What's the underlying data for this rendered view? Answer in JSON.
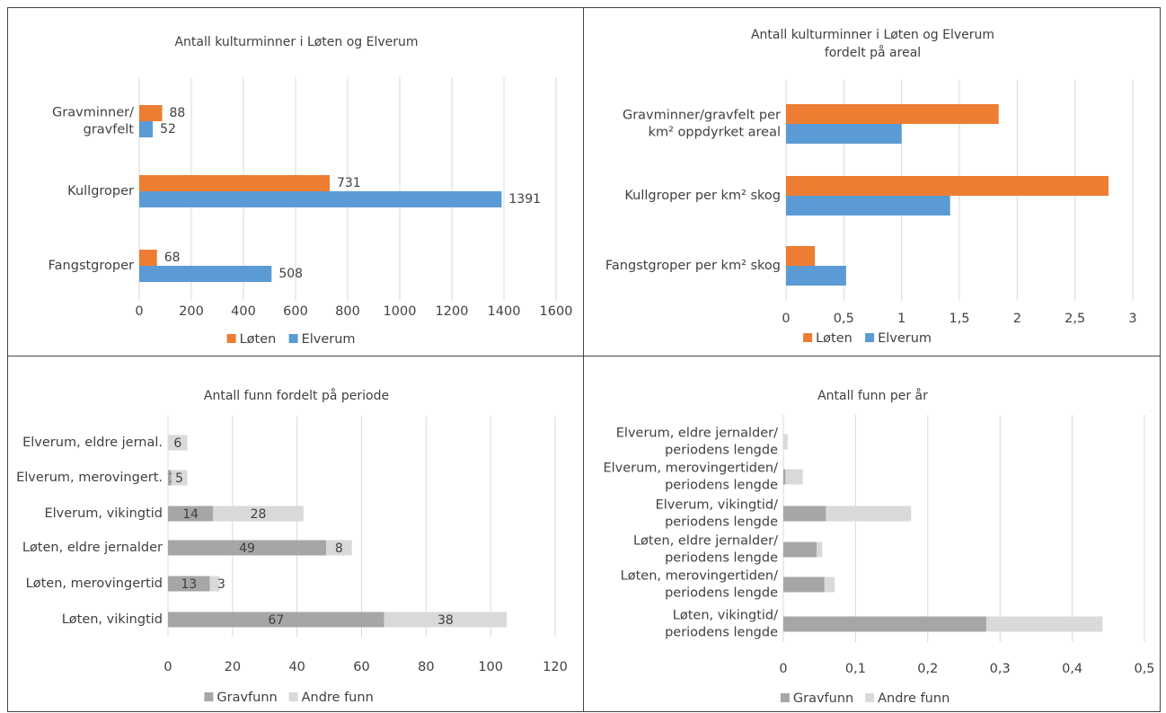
{
  "colors": {
    "loten": "#ED7D31",
    "elverum": "#5B9BD5",
    "gravfunn": "#A6A6A6",
    "andre_funn": "#D9D9D9",
    "grid": "#D9D9D9",
    "text": "#404040"
  },
  "chart_data": [
    {
      "type": "bar",
      "orientation": "horizontal",
      "title": "Antall kulturminner i Løten og Elverum",
      "categories": [
        [
          "Gravminner/",
          "gravfelt"
        ],
        [
          "Kullgroper"
        ],
        [
          "Fangstgroper"
        ]
      ],
      "series": [
        {
          "name": "Løten",
          "values": [
            88,
            731,
            68
          ]
        },
        {
          "name": "Elverum",
          "values": [
            52,
            1391,
            508
          ]
        }
      ],
      "data_labels": true,
      "xlim": [
        0,
        1600
      ],
      "ticks": [
        "0",
        "200",
        "400",
        "600",
        "800",
        "1000",
        "1200",
        "1400",
        "1600"
      ],
      "grid": true,
      "legend": "bottom"
    },
    {
      "type": "bar",
      "orientation": "horizontal",
      "title": [
        "Antall kulturminner i Løten og Elverum",
        "fordelt på areal"
      ],
      "categories": [
        [
          "Gravminner/gravfelt per",
          "km² oppdyrket areal"
        ],
        [
          "Kullgroper per km² skog"
        ],
        [
          "Fangstgroper per km² skog"
        ]
      ],
      "series": [
        {
          "name": "Løten",
          "values": [
            1.84,
            2.79,
            0.25
          ]
        },
        {
          "name": "Elverum",
          "values": [
            1.0,
            1.42,
            0.52
          ]
        }
      ],
      "data_labels": false,
      "xlim": [
        0,
        3
      ],
      "ticks": [
        "0",
        "0,5",
        "1",
        "1,5",
        "2",
        "2,5",
        "3"
      ],
      "grid": true,
      "legend": "bottom"
    },
    {
      "type": "bar",
      "orientation": "horizontal",
      "stacked": true,
      "title": "Antall funn fordelt på periode",
      "categories": [
        [
          "Elverum, eldre jernal."
        ],
        [
          "Elverum, merovingert."
        ],
        [
          "Elverum, vikingtid"
        ],
        [
          "Løten, eldre jernalder"
        ],
        [
          "Løten, merovingertid"
        ],
        [
          "Løten, vikingtid"
        ]
      ],
      "series": [
        {
          "name": "Gravfunn",
          "values": [
            0,
            1,
            14,
            49,
            13,
            67
          ]
        },
        {
          "name": "Andre funn",
          "values": [
            6,
            5,
            28,
            8,
            3,
            38
          ]
        }
      ],
      "data_labels": true,
      "xlim": [
        0,
        120
      ],
      "ticks": [
        "0",
        "20",
        "40",
        "60",
        "80",
        "100",
        "120"
      ],
      "grid": true,
      "legend": "bottom"
    },
    {
      "type": "bar",
      "orientation": "horizontal",
      "stacked": true,
      "title": "Antall funn per år",
      "categories": [
        [
          "Elverum, eldre jernalder/",
          "periodens lengde"
        ],
        [
          "Elverum, merovingertiden/",
          "periodens lengde"
        ],
        [
          "Elverum, vikingtid/",
          "periodens lengde"
        ],
        [
          "Løten, eldre jernalder/",
          "periodens lengde"
        ],
        [
          "Løten, merovingertiden/",
          "periodens lengde"
        ],
        [
          "Løten, vikingtid/",
          "periodens lengde"
        ]
      ],
      "series": [
        {
          "name": "Gravfunn",
          "values": [
            0,
            0.003,
            0.059,
            0.046,
            0.057,
            0.281
          ]
        },
        {
          "name": "Andre funn",
          "values": [
            0.006,
            0.024,
            0.118,
            0.008,
            0.014,
            0.161
          ]
        }
      ],
      "data_labels": false,
      "xlim": [
        0,
        0.5
      ],
      "ticks": [
        "0",
        "0,1",
        "0,2",
        "0,3",
        "0,4",
        "0,5"
      ],
      "grid": true,
      "legend": "bottom"
    }
  ]
}
